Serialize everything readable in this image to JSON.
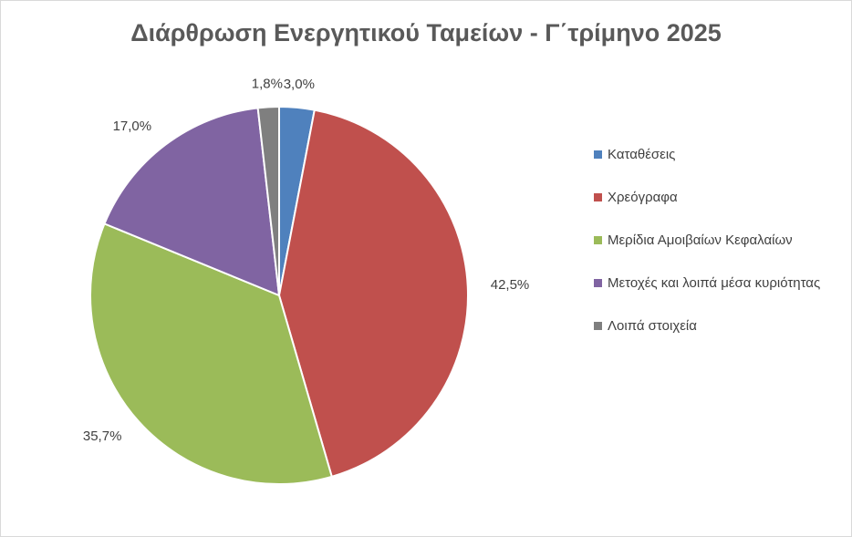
{
  "chart_data": {
    "type": "pie",
    "title": "Διάρθρωση Ενεργητικού Ταμείων - Γ΄τρίμηνο 2025",
    "categories": [
      "Καταθέσεις",
      "Χρεόγραφα",
      "Μερίδια Αμοιβαίων Κεφαλαίων",
      "Μετοχές και λοιπά μέσα κυριότητας",
      "Λοιπά στοιχεία"
    ],
    "values": [
      3.0,
      42.5,
      35.7,
      17.0,
      1.8
    ],
    "value_labels": [
      "3,0%",
      "42,5%",
      "35,7%",
      "17,0%",
      "1,8%"
    ],
    "colors": [
      "#4f81bd",
      "#c0504d",
      "#9bbb59",
      "#8064a2",
      "#7f7f7f"
    ],
    "legend": "right"
  }
}
